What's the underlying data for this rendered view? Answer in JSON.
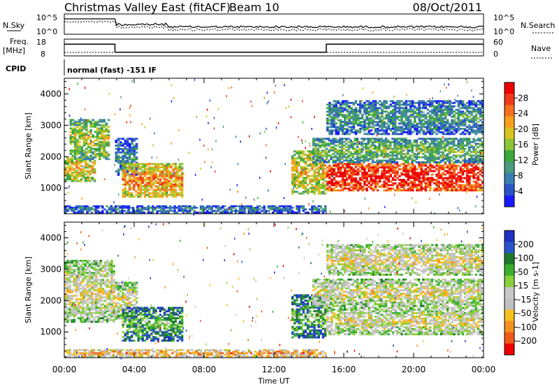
{
  "header": {
    "title": "Christmas Valley East (fitACF)",
    "beam": "Beam 10",
    "date": "08/Oct/2011"
  },
  "top_panels": {
    "nsky_label": "N.Sky",
    "nsky_ticks": [
      "10^5",
      "10^0"
    ],
    "nsearch_label": "N.Search",
    "nsearch_ticks": [
      "10^5",
      "10^0"
    ],
    "freq_label_1": "Freq.",
    "freq_label_2": "[MHz]",
    "freq_ticks": [
      "18",
      "8"
    ],
    "freq_values": {
      "segments": [
        {
          "t0": 0,
          "t1": 2.9,
          "mhz": 16.4
        },
        {
          "t0": 2.9,
          "t1": 15.0,
          "mhz": 10.6
        },
        {
          "t0": 15.0,
          "t1": 24,
          "mhz": 16.4
        }
      ]
    },
    "nave_label": "Nave",
    "nave_ticks": [
      "60",
      "0"
    ],
    "cpid_label": "CPID",
    "cpid_text": "normal (fast) -151 IF"
  },
  "colors": {
    "power": [
      "#1a1aff",
      "#2a55c8",
      "#3a7fb0",
      "#4c9a80",
      "#3aa83a",
      "#8bc43a",
      "#d8c420",
      "#f5a020",
      "#f57020",
      "#f03a1a",
      "#ee0000"
    ],
    "velocity": [
      "#2030c0",
      "#2a55c8",
      "#1e7a2a",
      "#3ab030",
      "#8ad03a",
      "#c8c8c8",
      "#c0c0c0",
      "#f5c020",
      "#f59020",
      "#f05a1a",
      "#ee0000"
    ]
  },
  "chart_data": [
    {
      "type": "heatmap",
      "title": "Power",
      "xlabel": "Time UT",
      "ylabel": "Slant Range [km]",
      "xlim": [
        0,
        24
      ],
      "ylim": [
        180,
        4500
      ],
      "x_tick_labels": [
        "00:00",
        "04:00",
        "08:00",
        "12:00",
        "16:00",
        "20:00",
        "00:00"
      ],
      "y_tick_values": [
        1000,
        2000,
        3000,
        4000
      ],
      "y_tick_labels": [
        "1000",
        "2000",
        "3000",
        "4000"
      ],
      "colorbar": {
        "label": "Power [dB]",
        "range": [
          0,
          32
        ],
        "tick_values": [
          4,
          8,
          12,
          16,
          20,
          24,
          28
        ],
        "tick_labels": [
          "4",
          "8",
          "12",
          "16",
          "20",
          "24",
          "28"
        ]
      },
      "regions": [
        {
          "t0": 0.0,
          "t1": 1.8,
          "r0": 1200,
          "r1": 2000,
          "level": 0.55
        },
        {
          "t0": 0.3,
          "t1": 2.6,
          "r0": 1900,
          "r1": 3200,
          "level": 0.45
        },
        {
          "t0": 2.9,
          "t1": 4.2,
          "r0": 1400,
          "r1": 2600,
          "level": 0.2
        },
        {
          "t0": 3.3,
          "t1": 6.8,
          "r0": 700,
          "r1": 1800,
          "level": 0.65
        },
        {
          "t0": 0.0,
          "t1": 15.0,
          "r0": 200,
          "r1": 450,
          "level": 0.18
        },
        {
          "t0": 13.0,
          "t1": 15.0,
          "r0": 800,
          "r1": 2200,
          "level": 0.55
        },
        {
          "t0": 15.0,
          "t1": 24.0,
          "r0": 900,
          "r1": 1800,
          "level": 0.88
        },
        {
          "t0": 14.2,
          "t1": 24.0,
          "r0": 1800,
          "r1": 2600,
          "level": 0.35
        },
        {
          "t0": 15.0,
          "t1": 24.0,
          "r0": 2700,
          "r1": 3800,
          "level": 0.25
        }
      ]
    },
    {
      "type": "heatmap",
      "title": "Velocity",
      "xlabel": "Time UT",
      "ylabel": "Slant Range [km]",
      "xlim": [
        0,
        24
      ],
      "ylim": [
        180,
        4500
      ],
      "x_tick_labels": [
        "00:00",
        "04:00",
        "08:00",
        "12:00",
        "16:00",
        "20:00",
        "00:00"
      ],
      "y_tick_values": [
        1000,
        2000,
        3000,
        4000
      ],
      "y_tick_labels": [
        "1000",
        "2000",
        "3000",
        "4000"
      ],
      "colorbar": {
        "label": "Velocity [m s-1]",
        "range": [
          -250,
          250
        ],
        "tick_values": [
          200,
          100,
          50,
          15,
          -15,
          -50,
          -100,
          -200
        ],
        "tick_labels": [
          "200",
          "100",
          "50",
          "15",
          "-15",
          "-50",
          "-100",
          "-200"
        ]
      },
      "regions": [
        {
          "t0": 0.0,
          "t1": 2.9,
          "r0": 1300,
          "r1": 3300,
          "level": 0.5
        },
        {
          "t0": 2.9,
          "t1": 4.2,
          "r0": 1400,
          "r1": 2600,
          "level": 0.5
        },
        {
          "t0": 3.3,
          "t1": 6.8,
          "r0": 700,
          "r1": 1800,
          "level": 0.25
        },
        {
          "t0": 0.0,
          "t1": 15.0,
          "r0": 200,
          "r1": 450,
          "level": 0.65
        },
        {
          "t0": 13.0,
          "t1": 15.0,
          "r0": 800,
          "r1": 2200,
          "level": 0.25
        },
        {
          "t0": 15.0,
          "t1": 24.0,
          "r0": 900,
          "r1": 1800,
          "level": 0.5
        },
        {
          "t0": 14.2,
          "t1": 24.0,
          "r0": 1800,
          "r1": 2700,
          "level": 0.5
        },
        {
          "t0": 15.0,
          "t1": 24.0,
          "r0": 2800,
          "r1": 3800,
          "level": 0.52
        }
      ]
    }
  ]
}
